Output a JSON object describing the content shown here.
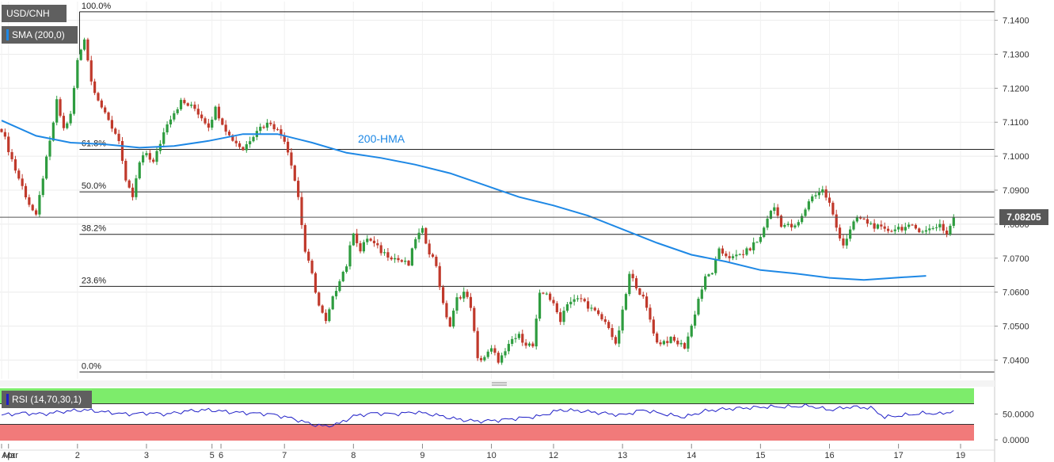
{
  "legend": {
    "symbol": "USD/CNH",
    "sma": "SMA (200,0)",
    "sma_color": "#1e88e5",
    "rsi": "RSI (14,70,30,1)",
    "rsi_color": "#1f1fc7"
  },
  "last_price_label": "7.08205",
  "hma_annotation": "200-HMA",
  "chart_data": {
    "type": "candlestick",
    "title": "",
    "price_axis": {
      "ticks": [
        "7.1400",
        "7.1300",
        "7.1200",
        "7.1100",
        "7.1000",
        "7.0900",
        "7.0800",
        "7.0700",
        "7.0600",
        "7.0500",
        "7.0400"
      ],
      "range": [
        7.0345,
        7.1455
      ]
    },
    "x_axis": {
      "tick_labels": [
        {
          "label": "Mar",
          "x": 0.0
        },
        {
          "label": "Apr",
          "x": 1.0
        },
        {
          "label": "2",
          "x": 11.0
        },
        {
          "label": "3",
          "x": 21.0
        },
        {
          "label": "5",
          "x": 30.5
        },
        {
          "label": "6",
          "x": 31.8
        },
        {
          "label": "7",
          "x": 41.0
        },
        {
          "label": "8",
          "x": 51.0
        },
        {
          "label": "9",
          "x": 61.0
        },
        {
          "label": "10",
          "x": 71.0
        },
        {
          "label": "12",
          "x": 80.0
        },
        {
          "label": "13",
          "x": 90.0
        },
        {
          "label": "14",
          "x": 100.0
        },
        {
          "label": "15",
          "x": 110.0
        },
        {
          "label": "16",
          "x": 120.0
        },
        {
          "label": "17",
          "x": 130.0
        },
        {
          "label": "19",
          "x": 139.0
        }
      ],
      "range": [
        0,
        142
      ]
    },
    "fibonacci": [
      {
        "label": "100.0%",
        "price": 7.1425
      },
      {
        "label": "61.8%",
        "price": 7.102
      },
      {
        "label": "50.0%",
        "price": 7.0895
      },
      {
        "label": "38.2%",
        "price": 7.077
      },
      {
        "label": "23.6%",
        "price": 7.0617
      },
      {
        "label": "0.0%",
        "price": 7.0365
      }
    ],
    "last_price": 7.08205,
    "up_color": "#2e9c3f",
    "down_color": "#c0392b",
    "price_keys": [
      [
        0,
        7.108
      ],
      [
        2,
        7.096
      ],
      [
        4,
        7.086
      ],
      [
        5,
        7.082
      ],
      [
        6,
        7.094
      ],
      [
        7,
        7.104
      ],
      [
        8,
        7.116
      ],
      [
        9,
        7.108
      ],
      [
        10,
        7.112
      ],
      [
        11,
        7.128
      ],
      [
        12,
        7.135
      ],
      [
        13,
        7.122
      ],
      [
        14,
        7.117
      ],
      [
        15,
        7.112
      ],
      [
        17,
        7.105
      ],
      [
        18,
        7.092
      ],
      [
        19,
        7.088
      ],
      [
        20,
        7.098
      ],
      [
        21,
        7.101
      ],
      [
        22,
        7.098
      ],
      [
        24,
        7.11
      ],
      [
        26,
        7.116
      ],
      [
        28,
        7.114
      ],
      [
        30,
        7.109
      ],
      [
        31,
        7.114
      ],
      [
        33,
        7.106
      ],
      [
        35,
        7.102
      ],
      [
        37,
        7.108
      ],
      [
        39,
        7.11
      ],
      [
        41,
        7.105
      ],
      [
        42,
        7.098
      ],
      [
        43,
        7.088
      ],
      [
        44,
        7.072
      ],
      [
        45,
        7.065
      ],
      [
        46,
        7.056
      ],
      [
        47,
        7.051
      ],
      [
        48,
        7.058
      ],
      [
        49,
        7.064
      ],
      [
        50,
        7.068
      ],
      [
        51,
        7.078
      ],
      [
        52,
        7.072
      ],
      [
        53,
        7.076
      ],
      [
        55,
        7.072
      ],
      [
        57,
        7.07
      ],
      [
        59,
        7.068
      ],
      [
        60,
        7.076
      ],
      [
        61,
        7.078
      ],
      [
        62,
        7.072
      ],
      [
        63,
        7.068
      ],
      [
        64,
        7.056
      ],
      [
        65,
        7.05
      ],
      [
        66,
        7.058
      ],
      [
        67,
        7.06
      ],
      [
        68,
        7.056
      ],
      [
        69,
        7.04
      ],
      [
        70,
        7.041
      ],
      [
        71,
        7.043
      ],
      [
        72,
        7.04
      ],
      [
        73,
        7.042
      ],
      [
        74,
        7.046
      ],
      [
        75,
        7.047
      ],
      [
        76,
        7.045
      ],
      [
        77,
        7.044
      ],
      [
        78,
        7.059
      ],
      [
        79,
        7.06
      ],
      [
        80,
        7.056
      ],
      [
        81,
        7.052
      ],
      [
        82,
        7.057
      ],
      [
        84,
        7.058
      ],
      [
        86,
        7.054
      ],
      [
        88,
        7.05
      ],
      [
        89,
        7.044
      ],
      [
        90,
        7.054
      ],
      [
        91,
        7.065
      ],
      [
        92,
        7.062
      ],
      [
        93,
        7.058
      ],
      [
        94,
        7.052
      ],
      [
        95,
        7.045
      ],
      [
        97,
        7.046
      ],
      [
        99,
        7.044
      ],
      [
        100,
        7.05
      ],
      [
        101,
        7.058
      ],
      [
        102,
        7.064
      ],
      [
        103,
        7.066
      ],
      [
        104,
        7.072
      ],
      [
        106,
        7.07
      ],
      [
        108,
        7.072
      ],
      [
        110,
        7.076
      ],
      [
        111,
        7.082
      ],
      [
        112,
        7.085
      ],
      [
        113,
        7.08
      ],
      [
        115,
        7.079
      ],
      [
        116,
        7.082
      ],
      [
        117,
        7.087
      ],
      [
        118,
        7.089
      ],
      [
        119,
        7.09
      ],
      [
        120,
        7.086
      ],
      [
        121,
        7.079
      ],
      [
        122,
        7.074
      ],
      [
        123,
        7.078
      ],
      [
        124,
        7.082
      ],
      [
        126,
        7.08
      ],
      [
        128,
        7.078
      ],
      [
        130,
        7.079
      ],
      [
        132,
        7.079
      ],
      [
        134,
        7.078
      ],
      [
        135,
        7.079
      ],
      [
        136,
        7.08
      ],
      [
        137,
        7.077
      ],
      [
        138,
        7.08205
      ]
    ],
    "hma_points": [
      [
        0,
        7.1105
      ],
      [
        5,
        7.106
      ],
      [
        10,
        7.104
      ],
      [
        15,
        7.1035
      ],
      [
        20,
        7.1025
      ],
      [
        25,
        7.103
      ],
      [
        30,
        7.1045
      ],
      [
        35,
        7.1065
      ],
      [
        40,
        7.1065
      ],
      [
        45,
        7.104
      ],
      [
        50,
        7.101
      ],
      [
        55,
        7.0995
      ],
      [
        60,
        7.0975
      ],
      [
        65,
        7.095
      ],
      [
        70,
        7.0915
      ],
      [
        75,
        7.088
      ],
      [
        80,
        7.0855
      ],
      [
        85,
        7.0825
      ],
      [
        90,
        7.0785
      ],
      [
        95,
        7.0745
      ],
      [
        100,
        7.071
      ],
      [
        105,
        7.069
      ],
      [
        110,
        7.0665
      ],
      [
        115,
        7.0655
      ],
      [
        120,
        7.0642
      ],
      [
        125,
        7.0636
      ],
      [
        130,
        7.0643
      ],
      [
        134,
        7.0648
      ]
    ],
    "rsi": {
      "ticks": [
        "50.0000",
        "0.0000"
      ],
      "range": [
        -20,
        100
      ],
      "overbought": 70,
      "oversold": 30,
      "overbought_color": "#7dec6b",
      "oversold_color": "#f17a7a",
      "keys": [
        [
          0,
          48
        ],
        [
          3,
          52
        ],
        [
          6,
          50
        ],
        [
          9,
          55
        ],
        [
          12,
          58
        ],
        [
          15,
          54
        ],
        [
          18,
          50
        ],
        [
          21,
          52
        ],
        [
          24,
          50
        ],
        [
          27,
          56
        ],
        [
          30,
          58
        ],
        [
          33,
          54
        ],
        [
          36,
          52
        ],
        [
          39,
          50
        ],
        [
          42,
          42
        ],
        [
          45,
          30
        ],
        [
          47,
          26
        ],
        [
          49,
          32
        ],
        [
          51,
          46
        ],
        [
          54,
          52
        ],
        [
          57,
          50
        ],
        [
          60,
          54
        ],
        [
          63,
          48
        ],
        [
          66,
          40
        ],
        [
          69,
          36
        ],
        [
          72,
          38
        ],
        [
          75,
          42
        ],
        [
          78,
          46
        ],
        [
          81,
          58
        ],
        [
          84,
          56
        ],
        [
          87,
          52
        ],
        [
          90,
          48
        ],
        [
          93,
          58
        ],
        [
          96,
          50
        ],
        [
          99,
          44
        ],
        [
          102,
          56
        ],
        [
          105,
          60
        ],
        [
          108,
          62
        ],
        [
          111,
          64
        ],
        [
          114,
          64
        ],
        [
          117,
          66
        ],
        [
          120,
          58
        ],
        [
          123,
          64
        ],
        [
          126,
          62
        ],
        [
          128,
          44
        ],
        [
          131,
          48
        ],
        [
          134,
          52
        ],
        [
          136,
          50
        ],
        [
          138,
          56
        ]
      ]
    }
  }
}
